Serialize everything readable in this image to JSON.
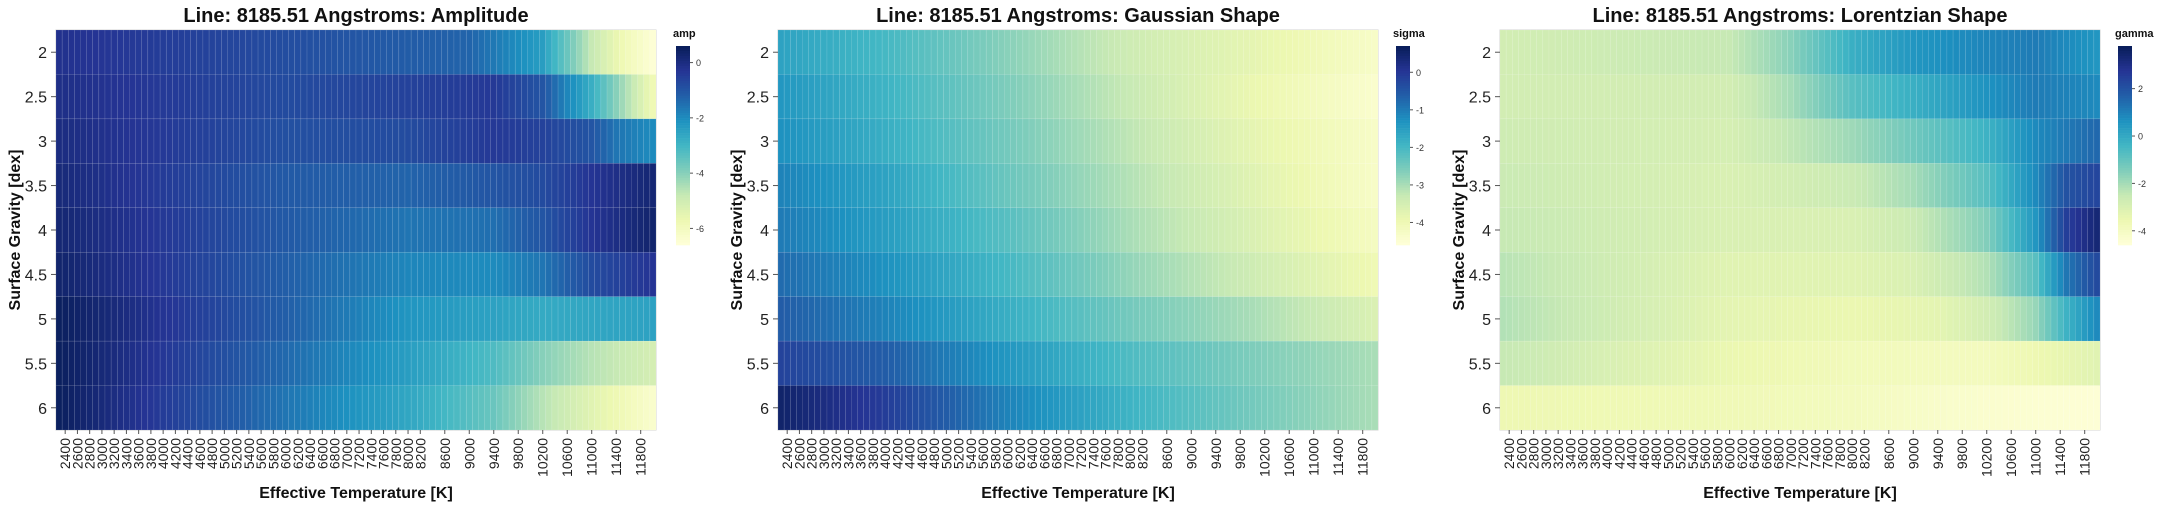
{
  "chart_data": [
    {
      "type": "heatmap",
      "title": "Line: 8185.51 Angstroms: Amplitude",
      "xlabel": "Effective Temperature [K]",
      "ylabel": "Surface Gravity [dex]",
      "colorbar_label": "amp",
      "colorbar_ticks": [
        "0",
        "-2",
        "-4",
        "-6"
      ],
      "colorbar_tick_values": [
        0,
        -2,
        -4,
        -6
      ],
      "vrange": [
        -6.6,
        0.6
      ],
      "x_ticks": [
        "2400",
        "2600",
        "2800",
        "3000",
        "3200",
        "3400",
        "3600",
        "3800",
        "4000",
        "4200",
        "4400",
        "4600",
        "4800",
        "5000",
        "5200",
        "5400",
        "5600",
        "5800",
        "6000",
        "6200",
        "6400",
        "6600",
        "6800",
        "7000",
        "7200",
        "7400",
        "7600",
        "7800",
        "8000",
        "8200",
        "8600",
        "9000",
        "9400",
        "9800",
        "10200",
        "10600",
        "11000",
        "11400",
        "11800"
      ],
      "y_ticks": [
        "2",
        "2.5",
        "3",
        "3.5",
        "4",
        "4.5",
        "5",
        "5.5",
        "6"
      ],
      "note_grid": "each logg row is sampled at every Teff of the model grid; each value list runs 2300 K to 12000 K, step 100 K",
      "rows": [
        {
          "logg": "2",
          "knots": [
            [
              2300,
              -0.2
            ],
            [
              7000,
              -1.0
            ],
            [
              9000,
              -1.3
            ],
            [
              10200,
              -2.4
            ],
            [
              11000,
              -4.8
            ],
            [
              11500,
              -5.8
            ],
            [
              12000,
              -6.5
            ]
          ]
        },
        {
          "logg": "2.5",
          "knots": [
            [
              2300,
              -0.1
            ],
            [
              6000,
              -0.8
            ],
            [
              8000,
              -0.6
            ],
            [
              9400,
              -0.4
            ],
            [
              10200,
              -1.0
            ],
            [
              11000,
              -2.8
            ],
            [
              11500,
              -4.3
            ],
            [
              12000,
              -5.8
            ]
          ]
        },
        {
          "logg": "3",
          "knots": [
            [
              2300,
              0.0
            ],
            [
              6000,
              -0.9
            ],
            [
              8000,
              -0.8
            ],
            [
              9400,
              -0.4
            ],
            [
              10200,
              -0.6
            ],
            [
              11000,
              -1.0
            ],
            [
              11400,
              -1.6
            ],
            [
              12000,
              -2.0
            ]
          ]
        },
        {
          "logg": "3.5",
          "knots": [
            [
              2300,
              0.1
            ],
            [
              6000,
              -1.1
            ],
            [
              8000,
              -1.3
            ],
            [
              9400,
              -1.0
            ],
            [
              10200,
              -0.8
            ],
            [
              11000,
              -0.3
            ],
            [
              12000,
              0.2
            ]
          ]
        },
        {
          "logg": "4",
          "knots": [
            [
              2300,
              0.2
            ],
            [
              6000,
              -1.1
            ],
            [
              8000,
              -1.6
            ],
            [
              9400,
              -1.5
            ],
            [
              10200,
              -1.0
            ],
            [
              11000,
              -0.3
            ],
            [
              12000,
              0.3
            ]
          ]
        },
        {
          "logg": "4.5",
          "knots": [
            [
              2300,
              0.3
            ],
            [
              6000,
              -1.2
            ],
            [
              8000,
              -1.9
            ],
            [
              9400,
              -2.0
            ],
            [
              10200,
              -1.6
            ],
            [
              11000,
              -0.8
            ],
            [
              12000,
              -0.3
            ]
          ]
        },
        {
          "logg": "5",
          "knots": [
            [
              2300,
              0.5
            ],
            [
              6000,
              -1.2
            ],
            [
              8000,
              -2.2
            ],
            [
              9400,
              -2.5
            ],
            [
              10200,
              -2.7
            ],
            [
              11000,
              -2.6
            ],
            [
              12000,
              -2.5
            ]
          ]
        },
        {
          "logg": "5.5",
          "knots": [
            [
              2300,
              0.5
            ],
            [
              6000,
              -1.4
            ],
            [
              8000,
              -2.4
            ],
            [
              9400,
              -3.2
            ],
            [
              10200,
              -4.0
            ],
            [
              11000,
              -4.6
            ],
            [
              12000,
              -5.1
            ]
          ]
        },
        {
          "logg": "6",
          "knots": [
            [
              2300,
              0.5
            ],
            [
              6000,
              -1.6
            ],
            [
              8000,
              -2.6
            ],
            [
              9400,
              -3.6
            ],
            [
              10200,
              -4.6
            ],
            [
              11000,
              -5.4
            ],
            [
              12000,
              -6.3
            ]
          ]
        }
      ]
    },
    {
      "type": "heatmap",
      "title": "Line: 8185.51 Angstroms: Gaussian Shape",
      "xlabel": "Effective Temperature [K]",
      "ylabel": "Surface Gravity [dex]",
      "colorbar_label": "sigma",
      "colorbar_ticks": [
        "0",
        "-1",
        "-2",
        "-3",
        "-4"
      ],
      "colorbar_tick_values": [
        0,
        -1,
        -2,
        -3,
        -4
      ],
      "vrange": [
        -4.6,
        0.7
      ],
      "x_ticks": [
        "2400",
        "2600",
        "2800",
        "3000",
        "3200",
        "3400",
        "3600",
        "3800",
        "4000",
        "4200",
        "4400",
        "4600",
        "4800",
        "5000",
        "5200",
        "5400",
        "5600",
        "5800",
        "6000",
        "6200",
        "6400",
        "6600",
        "6800",
        "7000",
        "7200",
        "7400",
        "7600",
        "7800",
        "8000",
        "8200",
        "8600",
        "9000",
        "9400",
        "9800",
        "10200",
        "10600",
        "11000",
        "11400",
        "11800"
      ],
      "y_ticks": [
        "2",
        "2.5",
        "3",
        "3.5",
        "4",
        "4.5",
        "5",
        "5.5",
        "6"
      ],
      "rows": [
        {
          "logg": "2",
          "knots": [
            [
              2300,
              -1.6
            ],
            [
              4000,
              -2.0
            ],
            [
              6000,
              -2.7
            ],
            [
              8000,
              -3.4
            ],
            [
              10000,
              -3.8
            ],
            [
              12000,
              -4.3
            ]
          ]
        },
        {
          "logg": "2.5",
          "knots": [
            [
              2300,
              -1.4
            ],
            [
              4000,
              -1.9
            ],
            [
              6000,
              -2.6
            ],
            [
              8000,
              -3.3
            ],
            [
              10000,
              -3.9
            ],
            [
              12000,
              -4.4
            ]
          ]
        },
        {
          "logg": "3",
          "knots": [
            [
              2300,
              -1.3
            ],
            [
              4000,
              -1.8
            ],
            [
              6000,
              -2.5
            ],
            [
              8000,
              -3.2
            ],
            [
              10000,
              -3.8
            ],
            [
              12000,
              -4.3
            ]
          ]
        },
        {
          "logg": "3.5",
          "knots": [
            [
              2300,
              -1.1
            ],
            [
              4000,
              -1.6
            ],
            [
              6000,
              -2.4
            ],
            [
              8000,
              -3.1
            ],
            [
              10000,
              -3.7
            ],
            [
              12000,
              -4.3
            ]
          ]
        },
        {
          "logg": "4",
          "knots": [
            [
              2300,
              -1.0
            ],
            [
              4000,
              -1.5
            ],
            [
              6000,
              -2.2
            ],
            [
              8000,
              -3.0
            ],
            [
              10000,
              -3.6
            ],
            [
              12000,
              -4.2
            ]
          ]
        },
        {
          "logg": "4.5",
          "knots": [
            [
              2300,
              -0.8
            ],
            [
              4000,
              -1.3
            ],
            [
              6000,
              -2.0
            ],
            [
              8000,
              -2.8
            ],
            [
              10000,
              -3.4
            ],
            [
              12000,
              -4.0
            ]
          ]
        },
        {
          "logg": "5",
          "knots": [
            [
              2300,
              -0.6
            ],
            [
              4000,
              -1.1
            ],
            [
              6000,
              -1.8
            ],
            [
              8000,
              -2.5
            ],
            [
              10000,
              -3.0
            ],
            [
              12000,
              -3.6
            ]
          ]
        },
        {
          "logg": "5.5",
          "knots": [
            [
              2300,
              -0.2
            ],
            [
              4000,
              -0.6
            ],
            [
              6000,
              -1.4
            ],
            [
              8000,
              -2.1
            ],
            [
              10000,
              -2.6
            ],
            [
              12000,
              -3.0
            ]
          ]
        },
        {
          "logg": "6",
          "knots": [
            [
              2300,
              0.5
            ],
            [
              4000,
              -0.1
            ],
            [
              6000,
              -1.1
            ],
            [
              8000,
              -1.9
            ],
            [
              10000,
              -2.5
            ],
            [
              12000,
              -3.0
            ]
          ]
        }
      ]
    },
    {
      "type": "heatmap",
      "title": "Line: 8185.51 Angstroms: Lorentzian Shape",
      "xlabel": "Effective Temperature [K]",
      "ylabel": "Surface Gravity [dex]",
      "colorbar_label": "gamma",
      "colorbar_ticks": [
        "2",
        "0",
        "-2",
        "-4"
      ],
      "colorbar_tick_values": [
        2,
        0,
        -2,
        -4
      ],
      "vrange": [
        -4.6,
        3.8
      ],
      "x_ticks": [
        "2400",
        "2600",
        "2800",
        "3000",
        "3200",
        "3400",
        "3600",
        "3800",
        "4000",
        "4200",
        "4400",
        "4600",
        "4800",
        "5000",
        "5200",
        "5400",
        "5600",
        "5800",
        "6000",
        "6200",
        "6400",
        "6600",
        "6800",
        "7000",
        "7200",
        "7400",
        "7600",
        "7800",
        "8000",
        "8200",
        "8600",
        "9000",
        "9400",
        "9800",
        "10200",
        "10600",
        "11000",
        "11400",
        "11800"
      ],
      "y_ticks": [
        "2",
        "2.5",
        "3",
        "3.5",
        "4",
        "4.5",
        "5",
        "5.5",
        "6"
      ],
      "rows": [
        {
          "logg": "2",
          "knots": [
            [
              2300,
              -2.8
            ],
            [
              6000,
              -2.5
            ],
            [
              7000,
              -1.6
            ],
            [
              8000,
              -0.2
            ],
            [
              9000,
              0.5
            ],
            [
              10200,
              0.9
            ],
            [
              11000,
              1.1
            ],
            [
              12000,
              0.5
            ]
          ]
        },
        {
          "logg": "2.5",
          "knots": [
            [
              2300,
              -2.8
            ],
            [
              6000,
              -2.8
            ],
            [
              7000,
              -2.0
            ],
            [
              8000,
              -0.8
            ],
            [
              9000,
              -0.2
            ],
            [
              10200,
              0.6
            ],
            [
              11000,
              1.1
            ],
            [
              12000,
              0.8
            ]
          ]
        },
        {
          "logg": "3",
          "knots": [
            [
              2300,
              -2.7
            ],
            [
              6000,
              -2.9
            ],
            [
              8000,
              -1.9
            ],
            [
              9000,
              -1.2
            ],
            [
              10200,
              -0.3
            ],
            [
              11000,
              0.8
            ],
            [
              12000,
              1.5
            ]
          ]
        },
        {
          "logg": "3.5",
          "knots": [
            [
              2300,
              -2.6
            ],
            [
              6000,
              -3.0
            ],
            [
              8000,
              -2.6
            ],
            [
              9000,
              -2.0
            ],
            [
              10200,
              -0.8
            ],
            [
              11000,
              0.8
            ],
            [
              11500,
              2.0
            ],
            [
              12000,
              2.3
            ]
          ]
        },
        {
          "logg": "4",
          "knots": [
            [
              2300,
              -2.5
            ],
            [
              6000,
              -3.0
            ],
            [
              8000,
              -3.0
            ],
            [
              9000,
              -2.6
            ],
            [
              10200,
              -1.5
            ],
            [
              11000,
              0.5
            ],
            [
              11500,
              2.5
            ],
            [
              12000,
              3.3
            ]
          ]
        },
        {
          "logg": "4.5",
          "knots": [
            [
              2300,
              -2.3
            ],
            [
              6000,
              -3.2
            ],
            [
              8000,
              -3.2
            ],
            [
              9000,
              -3.0
            ],
            [
              10200,
              -2.2
            ],
            [
              11000,
              -0.8
            ],
            [
              11500,
              1.2
            ],
            [
              12000,
              2.2
            ]
          ]
        },
        {
          "logg": "5",
          "knots": [
            [
              2300,
              -2.2
            ],
            [
              6000,
              -3.3
            ],
            [
              8000,
              -3.5
            ],
            [
              9400,
              -3.3
            ],
            [
              10200,
              -2.8
            ],
            [
              11000,
              -1.8
            ],
            [
              11500,
              -0.3
            ],
            [
              12000,
              0.8
            ]
          ]
        },
        {
          "logg": "5.5",
          "knots": [
            [
              2300,
              -2.5
            ],
            [
              6000,
              -3.5
            ],
            [
              8000,
              -3.8
            ],
            [
              9400,
              -3.9
            ],
            [
              10200,
              -3.9
            ],
            [
              11000,
              -3.6
            ],
            [
              12000,
              -3.2
            ]
          ]
        },
        {
          "logg": "6",
          "knots": [
            [
              2300,
              -3.6
            ],
            [
              6000,
              -3.7
            ],
            [
              8000,
              -3.9
            ],
            [
              9400,
              -4.2
            ],
            [
              10200,
              -4.3
            ],
            [
              11000,
              -4.4
            ],
            [
              12000,
              -4.5
            ]
          ]
        }
      ]
    }
  ],
  "palette": [
    "#ffffd9",
    "#edf8b1",
    "#c7e9b4",
    "#7fcdbb",
    "#41b6c4",
    "#1d91c0",
    "#225ea8",
    "#253494",
    "#081d58"
  ]
}
